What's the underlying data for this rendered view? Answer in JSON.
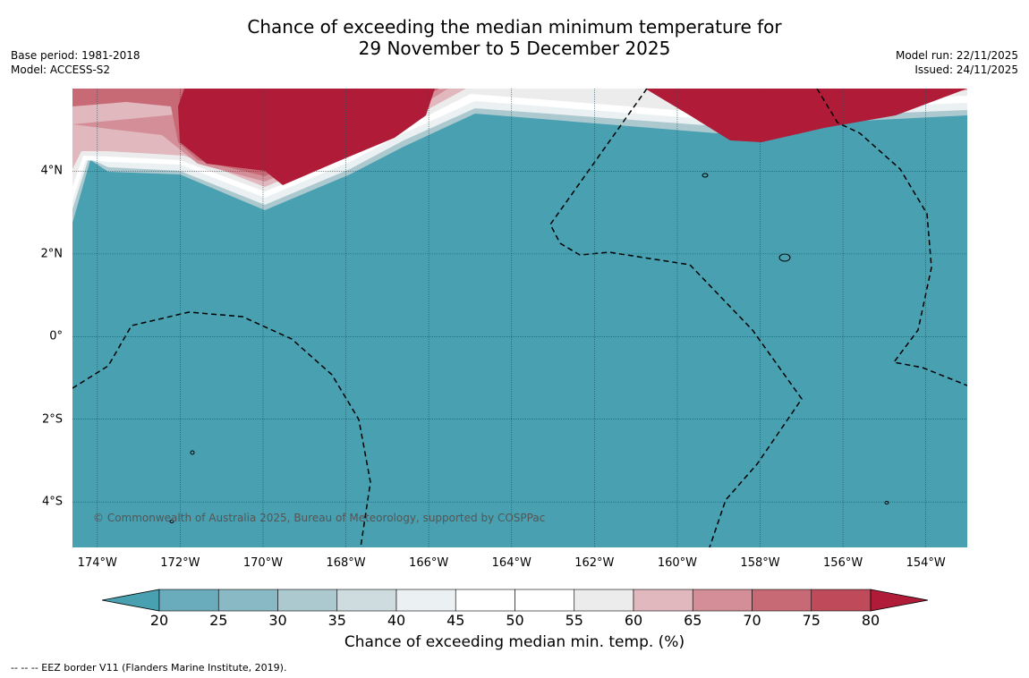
{
  "title_line1": "Chance of exceeding the median minimum temperature for",
  "title_line2": "29 November to 5 December 2025",
  "meta_left": {
    "base_period": "Base period: 1981-2018",
    "model": "Model: ACCESS-S2"
  },
  "meta_right": {
    "model_run": "Model run: 22/11/2025",
    "issued": "Issued: 24/11/2025"
  },
  "map": {
    "lon_range": [
      -174.6,
      -153.0
    ],
    "lat_range": [
      -5.1,
      6.0
    ],
    "lon_ticks": [
      {
        "value": -174,
        "label": "174°W"
      },
      {
        "value": -172,
        "label": "172°W"
      },
      {
        "value": -170,
        "label": "170°W"
      },
      {
        "value": -168,
        "label": "168°W"
      },
      {
        "value": -166,
        "label": "166°W"
      },
      {
        "value": -164,
        "label": "164°W"
      },
      {
        "value": -162,
        "label": "162°W"
      },
      {
        "value": -160,
        "label": "160°W"
      },
      {
        "value": -158,
        "label": "158°W"
      },
      {
        "value": -156,
        "label": "156°W"
      },
      {
        "value": -154,
        "label": "154°W"
      }
    ],
    "lat_ticks": [
      {
        "value": 4,
        "label": "4°N"
      },
      {
        "value": 2,
        "label": "2°N"
      },
      {
        "value": 0,
        "label": "0°"
      },
      {
        "value": -2,
        "label": "2°S"
      },
      {
        "value": -4,
        "label": "4°S"
      }
    ],
    "background_color": "#48a0b1",
    "copyright": "© Commonwealth of Australia 2025, Bureau of Meteorology, supported by COSPPac"
  },
  "colorbar": {
    "ticks": [
      "20",
      "25",
      "30",
      "35",
      "40",
      "45",
      "50",
      "55",
      "60",
      "65",
      "70",
      "75",
      "80"
    ],
    "low_extend_color": "#48a0b1",
    "high_extend_color": "#b01c38",
    "bins": [
      "#6aacbc",
      "#8ab9c6",
      "#adc9d0",
      "#cfdcdf",
      "#ebf1f2",
      "#ffffff",
      "#ffffff",
      "#ececec",
      "#e2b8bf",
      "#d38e98",
      "#c76a76",
      "#bf4b5a"
    ],
    "label": "Chance of exceeding median min. temp. (%)"
  },
  "footnote": "--  --  -- EEZ border V11 (Flanders Marine Institute, 2019)."
}
